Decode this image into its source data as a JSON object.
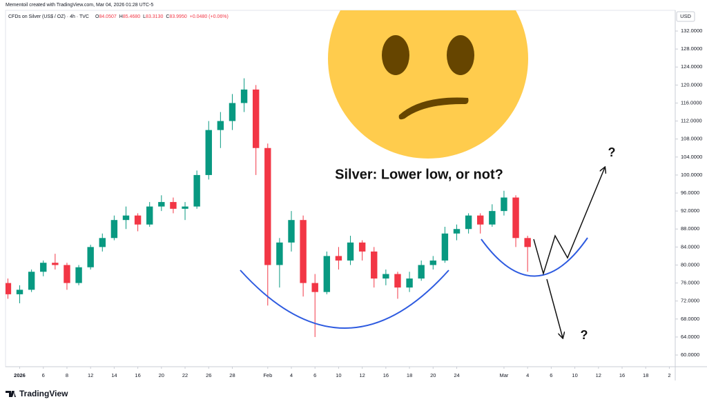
{
  "header": {
    "credit": "Mementoil created with TradingView.com, Mar 04, 2026 01:28 UTC-5",
    "symbol": "CFDs on Silver (US$ / OZ) · 4h · TVC",
    "ohlc": [
      {
        "key": "O",
        "value": "84.0507"
      },
      {
        "key": "H",
        "value": "85.4680"
      },
      {
        "key": "L",
        "value": "83.3130"
      },
      {
        "key": "C",
        "value": "83.9950"
      }
    ],
    "change": "+0.0480 (+0.06%)"
  },
  "chart_data": {
    "type": "candlestick",
    "title": "Silver: Lower low, or not?",
    "annotations": [
      "?",
      "?"
    ],
    "currency": "USD",
    "logo": "TradingView",
    "up_color": "#089981",
    "down_color": "#f23645",
    "x": [
      -1,
      0,
      1,
      2,
      3,
      4,
      5,
      6,
      7,
      8,
      9,
      10,
      11,
      12,
      13,
      14,
      15,
      16,
      17,
      18,
      19,
      20,
      21,
      22,
      23,
      24,
      25,
      26,
      27,
      28,
      29,
      30,
      31,
      32,
      33,
      34,
      35,
      36,
      37,
      38,
      39,
      40,
      41,
      42,
      43
    ],
    "open": [
      76,
      73.5,
      74.5,
      78.5,
      80.5,
      80,
      76,
      79.5,
      84,
      86,
      90,
      91,
      89,
      93,
      94,
      92.5,
      93,
      100,
      110,
      112,
      116,
      119,
      106,
      80,
      85,
      90,
      76,
      74,
      82,
      81,
      85,
      83,
      77,
      78,
      75,
      77,
      80,
      81,
      87,
      88,
      91,
      89,
      92,
      95,
      86
    ],
    "high": [
      77,
      75.5,
      79,
      81,
      82.5,
      80.5,
      80,
      84.5,
      87,
      91,
      93,
      91.5,
      94,
      95.5,
      95,
      94,
      101,
      112,
      114,
      118,
      121.5,
      120,
      107,
      86,
      92,
      91,
      78,
      83,
      84,
      86.5,
      85.5,
      84,
      79,
      78.5,
      78.5,
      81,
      82,
      88.5,
      89,
      91.5,
      91.5,
      93.5,
      96.5,
      95.5,
      86.5
    ],
    "low": [
      72.5,
      71.5,
      74,
      77.5,
      79,
      74.5,
      75.5,
      79,
      83,
      85.5,
      88,
      87.5,
      88.5,
      92,
      91.5,
      90,
      92.5,
      99,
      106,
      110,
      114,
      100,
      71,
      75,
      83,
      73,
      64,
      73.5,
      79,
      80,
      81,
      75,
      75.5,
      72.5,
      74,
      76.5,
      79,
      80.5,
      85.5,
      87,
      87,
      88.5,
      91,
      84,
      78.5
    ],
    "close": [
      73.5,
      74.5,
      78.5,
      80.5,
      80,
      76,
      79.5,
      84,
      86,
      90,
      91,
      89,
      93,
      94,
      92.5,
      93,
      100,
      110,
      112,
      116,
      119,
      106,
      80,
      85,
      90,
      76,
      74,
      82,
      81,
      85,
      83,
      77,
      78,
      75,
      77,
      80,
      81,
      87,
      88,
      91,
      89,
      92,
      95,
      86,
      84
    ],
    "xlim": [
      -1.2,
      55.5
    ],
    "ylim": [
      57.4,
      136.6
    ],
    "xticks": [
      {
        "value": 0,
        "label": "2026"
      },
      {
        "value": 2,
        "label": "6"
      },
      {
        "value": 4,
        "label": "8"
      },
      {
        "value": 6,
        "label": "12"
      },
      {
        "value": 8,
        "label": "14"
      },
      {
        "value": 10,
        "label": "16"
      },
      {
        "value": 12,
        "label": "20"
      },
      {
        "value": 14,
        "label": "22"
      },
      {
        "value": 16,
        "label": "26"
      },
      {
        "value": 18,
        "label": "28"
      },
      {
        "value": 21,
        "label": "Feb"
      },
      {
        "value": 23,
        "label": "4"
      },
      {
        "value": 25,
        "label": "6"
      },
      {
        "value": 27,
        "label": "10"
      },
      {
        "value": 29,
        "label": "12"
      },
      {
        "value": 31,
        "label": "16"
      },
      {
        "value": 33,
        "label": "18"
      },
      {
        "value": 35,
        "label": "20"
      },
      {
        "value": 37,
        "label": "24"
      },
      {
        "value": 41,
        "label": "Mar"
      },
      {
        "value": 43,
        "label": "4"
      },
      {
        "value": 45,
        "label": "6"
      },
      {
        "value": 47,
        "label": "10"
      },
      {
        "value": 49,
        "label": "12"
      },
      {
        "value": 51,
        "label": "16"
      },
      {
        "value": 53,
        "label": "18"
      },
      {
        "value": 55,
        "label": "2"
      }
    ],
    "yticks": [
      {
        "value": 60,
        "label": "60.0000"
      },
      {
        "value": 64,
        "label": "64.0000"
      },
      {
        "value": 68,
        "label": "68.0000"
      },
      {
        "value": 72,
        "label": "72.0000"
      },
      {
        "value": 76,
        "label": "76.0000"
      },
      {
        "value": 80,
        "label": "80.0000"
      },
      {
        "value": 84,
        "label": "84.0000"
      },
      {
        "value": 88,
        "label": "88.0000"
      },
      {
        "value": 92,
        "label": "92.0000"
      },
      {
        "value": 96,
        "label": "96.0000"
      },
      {
        "value": 100,
        "label": "100.0000"
      },
      {
        "value": 104,
        "label": "104.0000"
      },
      {
        "value": 108,
        "label": "108.0000"
      },
      {
        "value": 112,
        "label": "112.0000"
      },
      {
        "value": 116,
        "label": "116.0000"
      },
      {
        "value": 120,
        "label": "120.0000"
      },
      {
        "value": 124,
        "label": "124.0000"
      },
      {
        "value": 128,
        "label": "128.0000"
      },
      {
        "value": 132,
        "label": "132.0000"
      }
    ],
    "grid": false
  }
}
